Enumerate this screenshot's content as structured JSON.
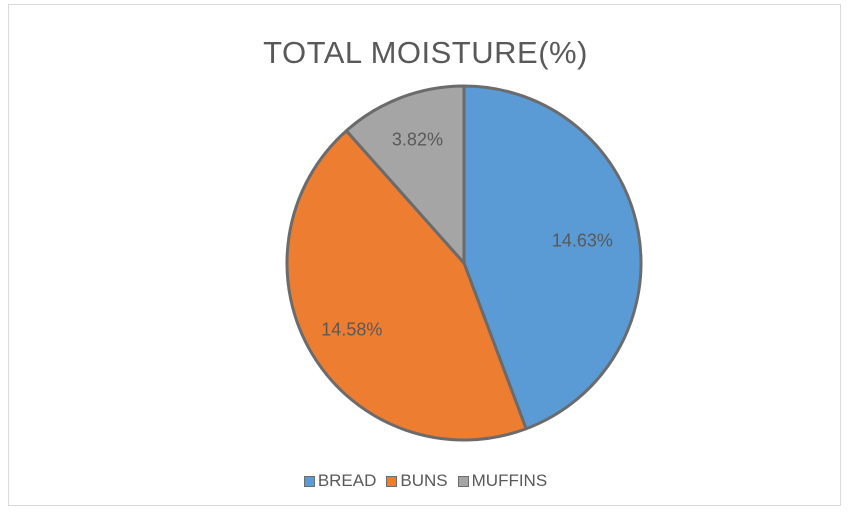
{
  "chart_data": {
    "type": "pie",
    "title": "TOTAL MOISTURE(%)",
    "slices": [
      {
        "label": "BREAD",
        "value": 14.63,
        "value_label": "14.63%",
        "color": "#5b9bd5"
      },
      {
        "label": "BUNS",
        "value": 14.58,
        "value_label": "14.58%",
        "color": "#ed7d31"
      },
      {
        "label": "MUFFINS",
        "value": 3.82,
        "value_label": "3.82%",
        "color": "#a5a5a5"
      }
    ],
    "legend_position": "bottom"
  }
}
